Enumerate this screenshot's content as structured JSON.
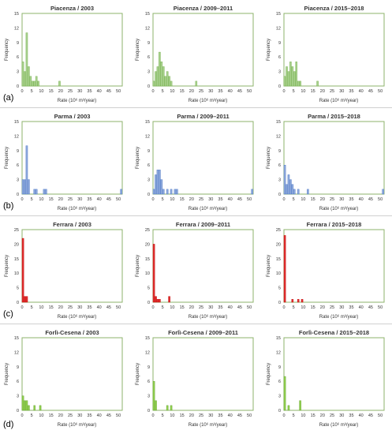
{
  "chart_data": [
    {
      "type": "bar",
      "title": "Piacenza / 2003",
      "xlabel": "Rate (10⁶ m³/year)",
      "ylabel": "Frequency",
      "xlim": [
        0,
        52
      ],
      "ylim": [
        0,
        15
      ],
      "yticks": [
        0,
        3,
        6,
        9,
        12,
        15
      ],
      "xticks": [
        0,
        5,
        10,
        15,
        20,
        25,
        30,
        35,
        40,
        45,
        50
      ],
      "bar_width": 1,
      "color": "#a9d18e",
      "edge": "#70ad47",
      "x": [
        0.5,
        1.5,
        2.5,
        3.5,
        4.5,
        5.5,
        6.5,
        7.5,
        8.5,
        19.5
      ],
      "values": [
        5,
        3,
        11,
        4,
        2,
        1,
        1,
        2,
        1,
        1
      ]
    },
    {
      "type": "bar",
      "title": "Piacenza / 2009–2011",
      "xlabel": "Rate (10⁶ m³/year)",
      "ylabel": "Frequency",
      "xlim": [
        0,
        52
      ],
      "ylim": [
        0,
        15
      ],
      "yticks": [
        0,
        3,
        6,
        9,
        12,
        15
      ],
      "xticks": [
        0,
        5,
        10,
        15,
        20,
        25,
        30,
        35,
        40,
        45,
        50
      ],
      "bar_width": 1,
      "color": "#a9d18e",
      "edge": "#70ad47",
      "x": [
        0.5,
        1.5,
        2.5,
        3.5,
        4.5,
        5.5,
        6.5,
        7.5,
        8.5,
        9.5,
        22.5
      ],
      "values": [
        1,
        3,
        4,
        7,
        5,
        4,
        2,
        3,
        2,
        1,
        1
      ]
    },
    {
      "type": "bar",
      "title": "Piacenza / 2015–2018",
      "xlabel": "Rate (10⁶ m³/year)",
      "ylabel": "Frequency",
      "xlim": [
        0,
        52
      ],
      "ylim": [
        0,
        15
      ],
      "yticks": [
        0,
        3,
        6,
        9,
        12,
        15
      ],
      "xticks": [
        0,
        5,
        10,
        15,
        20,
        25,
        30,
        35,
        40,
        45,
        50
      ],
      "bar_width": 1,
      "color": "#a9d18e",
      "edge": "#70ad47",
      "x": [
        0.5,
        1.5,
        2.5,
        3.5,
        4.5,
        5.5,
        6.5,
        7.5,
        8.5,
        17.5
      ],
      "values": [
        2,
        4,
        3,
        5,
        4,
        3,
        5,
        1,
        1,
        1
      ]
    },
    {
      "type": "bar",
      "title": "Parma / 2003",
      "xlabel": "Rate (10⁶ m³/year)",
      "ylabel": "Frequency",
      "xlim": [
        0,
        52
      ],
      "ylim": [
        0,
        15
      ],
      "yticks": [
        0,
        3,
        6,
        9,
        12,
        15
      ],
      "xticks": [
        0,
        5,
        10,
        15,
        20,
        25,
        30,
        35,
        40,
        45,
        50
      ],
      "bar_width": 1,
      "color": "#8faadc",
      "edge": "#4472c4",
      "x": [
        0.5,
        1.5,
        2.5,
        3.5,
        6.5,
        7.5,
        11.5,
        12.5,
        51.5
      ],
      "values": [
        3,
        3,
        10,
        3,
        1,
        1,
        1,
        1,
        1
      ]
    },
    {
      "type": "bar",
      "title": "Parma / 2009–2011",
      "xlabel": "Rate (10⁶ m³/year)",
      "ylabel": "Frequency",
      "xlim": [
        0,
        52
      ],
      "ylim": [
        0,
        15
      ],
      "yticks": [
        0,
        3,
        6,
        9,
        12,
        15
      ],
      "xticks": [
        0,
        5,
        10,
        15,
        20,
        25,
        30,
        35,
        40,
        45,
        50
      ],
      "bar_width": 1,
      "color": "#8faadc",
      "edge": "#4472c4",
      "x": [
        0.5,
        1.5,
        2.5,
        3.5,
        4.5,
        5.5,
        7.5,
        9.5,
        11.5,
        12.5,
        51.5
      ],
      "values": [
        1,
        4,
        5,
        5,
        3,
        1,
        1,
        1,
        1,
        1,
        1
      ]
    },
    {
      "type": "bar",
      "title": "Parma / 2015–2018",
      "xlabel": "Rate (10⁶ m³/year)",
      "ylabel": "Frequency",
      "xlim": [
        0,
        52
      ],
      "ylim": [
        0,
        15
      ],
      "yticks": [
        0,
        3,
        6,
        9,
        12,
        15
      ],
      "xticks": [
        0,
        5,
        10,
        15,
        20,
        25,
        30,
        35,
        40,
        45,
        50
      ],
      "bar_width": 1,
      "color": "#8faadc",
      "edge": "#4472c4",
      "x": [
        0.5,
        1.5,
        2.5,
        3.5,
        4.5,
        5.5,
        7.5,
        12.5,
        51.5
      ],
      "values": [
        6,
        2,
        4,
        3,
        2,
        1,
        1,
        1,
        1
      ]
    },
    {
      "type": "bar",
      "title": "Ferrara / 2003",
      "xlabel": "Rate (10⁶ m³/year)",
      "ylabel": "Frequency",
      "xlim": [
        0,
        52
      ],
      "ylim": [
        0,
        25
      ],
      "yticks": [
        0,
        5,
        10,
        15,
        20,
        25
      ],
      "xticks": [
        0,
        5,
        10,
        15,
        20,
        25,
        30,
        35,
        40,
        45,
        50
      ],
      "bar_width": 1,
      "color": "#e03030",
      "edge": "#c00000",
      "x": [
        0.5,
        1.5,
        2.5
      ],
      "values": [
        22,
        2,
        2
      ]
    },
    {
      "type": "bar",
      "title": "Ferrara / 2009–2011",
      "xlabel": "Rate (10⁶ m³/year)",
      "ylabel": "Frequency",
      "xlim": [
        0,
        52
      ],
      "ylim": [
        0,
        25
      ],
      "yticks": [
        0,
        5,
        10,
        15,
        20,
        25
      ],
      "xticks": [
        0,
        5,
        10,
        15,
        20,
        25,
        30,
        35,
        40,
        45,
        50
      ],
      "bar_width": 1,
      "color": "#e03030",
      "edge": "#c00000",
      "x": [
        0.5,
        1.5,
        2.5,
        3.5,
        8.5
      ],
      "values": [
        20,
        2,
        1,
        1,
        2
      ]
    },
    {
      "type": "bar",
      "title": "Ferrara / 2015–2018",
      "xlabel": "Rate (10⁶ m³/year)",
      "ylabel": "Frequency",
      "xlim": [
        0,
        52
      ],
      "ylim": [
        0,
        25
      ],
      "yticks": [
        0,
        5,
        10,
        15,
        20,
        25
      ],
      "xticks": [
        0,
        5,
        10,
        15,
        20,
        25,
        30,
        35,
        40,
        45,
        50
      ],
      "bar_width": 1,
      "color": "#e03030",
      "edge": "#c00000",
      "x": [
        0.5,
        4.5,
        7.5,
        9.5
      ],
      "values": [
        23,
        1,
        1,
        1
      ]
    },
    {
      "type": "bar",
      "title": "Forlì-Cesena / 2003",
      "xlabel": "Rate (10⁶ m³/year)",
      "ylabel": "Frequency",
      "xlim": [
        0,
        52
      ],
      "ylim": [
        0,
        15
      ],
      "yticks": [
        0,
        3,
        6,
        9,
        12,
        15
      ],
      "xticks": [
        0,
        5,
        10,
        15,
        20,
        25,
        30,
        35,
        40,
        45,
        50
      ],
      "bar_width": 1,
      "color": "#92d050",
      "edge": "#5fa02a",
      "x": [
        0.5,
        1.5,
        2.5,
        3.5,
        6.5,
        9.5
      ],
      "values": [
        3,
        2,
        2,
        1,
        1,
        1
      ]
    },
    {
      "type": "bar",
      "title": "Forlì-Cesena / 2009–2011",
      "xlabel": "Rate (10⁶ m³/year)",
      "ylabel": "Frequency",
      "xlim": [
        0,
        52
      ],
      "ylim": [
        0,
        15
      ],
      "yticks": [
        0,
        3,
        6,
        9,
        12,
        15
      ],
      "xticks": [
        0,
        5,
        10,
        15,
        20,
        25,
        30,
        35,
        40,
        45,
        50
      ],
      "bar_width": 1,
      "color": "#92d050",
      "edge": "#5fa02a",
      "x": [
        0.5,
        1.5,
        7.5,
        9.5
      ],
      "values": [
        6,
        2,
        1,
        1
      ]
    },
    {
      "type": "bar",
      "title": "Forlì-Cesena / 2015–2018",
      "xlabel": "Rate (10⁶ m³/year)",
      "ylabel": "Frequency",
      "xlim": [
        0,
        52
      ],
      "ylim": [
        0,
        15
      ],
      "yticks": [
        0,
        3,
        6,
        9,
        12,
        15
      ],
      "xticks": [
        0,
        5,
        10,
        15,
        20,
        25,
        30,
        35,
        40,
        45,
        50
      ],
      "bar_width": 1,
      "color": "#92d050",
      "edge": "#5fa02a",
      "x": [
        0.5,
        2.5,
        8.5
      ],
      "values": [
        7,
        1,
        2
      ]
    }
  ],
  "panel_labels": [
    "(a)",
    "(b)",
    "(c)",
    "(d)"
  ]
}
